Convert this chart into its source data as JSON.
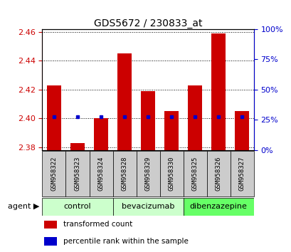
{
  "title": "GDS5672 / 230833_at",
  "samples": [
    "GSM958322",
    "GSM958323",
    "GSM958324",
    "GSM958328",
    "GSM958329",
    "GSM958330",
    "GSM958325",
    "GSM958326",
    "GSM958327"
  ],
  "red_values": [
    2.423,
    2.383,
    2.4,
    2.445,
    2.419,
    2.405,
    2.423,
    2.459,
    2.405
  ],
  "blue_values": [
    2.401,
    2.401,
    2.401,
    2.401,
    2.401,
    2.401,
    2.401,
    2.401,
    2.401
  ],
  "bar_base": 2.378,
  "ylim": [
    2.378,
    2.462
  ],
  "y2lim": [
    0,
    100
  ],
  "yticks": [
    2.38,
    2.4,
    2.42,
    2.44,
    2.46
  ],
  "y2ticks": [
    0,
    25,
    50,
    75,
    100
  ],
  "red_color": "#cc0000",
  "blue_color": "#0000cc",
  "bar_width": 0.6,
  "figsize": [
    4.1,
    3.54
  ],
  "dpi": 100,
  "group_info": [
    {
      "label": "control",
      "indices": [
        0,
        1,
        2
      ],
      "color": "#ccffcc"
    },
    {
      "label": "bevacizumab",
      "indices": [
        3,
        4,
        5
      ],
      "color": "#ccffcc"
    },
    {
      "label": "dibenzazepine",
      "indices": [
        6,
        7,
        8
      ],
      "color": "#66ff66"
    }
  ],
  "sample_box_color": "#cccccc",
  "legend_items": [
    {
      "color": "#cc0000",
      "label": "transformed count"
    },
    {
      "color": "#0000cc",
      "label": "percentile rank within the sample"
    }
  ]
}
